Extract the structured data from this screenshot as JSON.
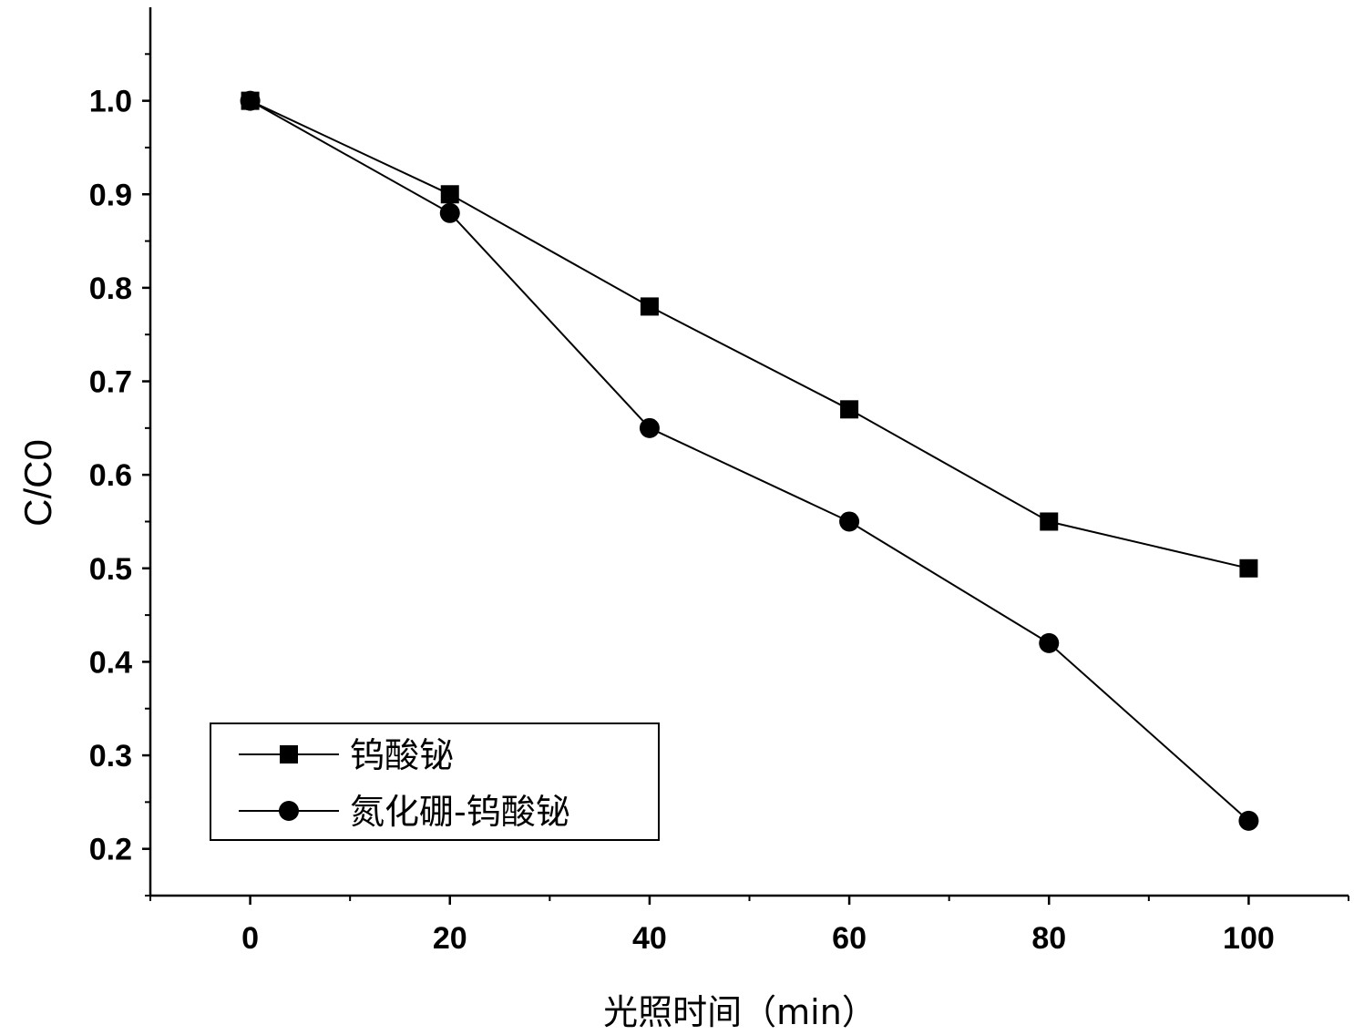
{
  "chart_data": {
    "type": "line",
    "xlabel": "光照时间（min）",
    "ylabel": "C/C0",
    "xlim": [
      -10,
      110
    ],
    "ylim": [
      0.15,
      1.1
    ],
    "xticks": [
      "0",
      "20",
      "40",
      "60",
      "80",
      "100"
    ],
    "yticks": [
      "0.2",
      "0.3",
      "0.4",
      "0.5",
      "0.6",
      "0.7",
      "0.8",
      "0.9",
      "1.0"
    ],
    "x": [
      0,
      20,
      40,
      60,
      80,
      100
    ],
    "series": [
      {
        "name": "钨酸铋",
        "marker": "square",
        "values": [
          1.0,
          0.9,
          0.78,
          0.67,
          0.55,
          0.5
        ]
      },
      {
        "name": "氮化硼-钨酸铋",
        "marker": "circle",
        "values": [
          1.0,
          0.88,
          0.65,
          0.55,
          0.42,
          0.23
        ]
      }
    ],
    "legend_position": "bottom-left",
    "grid": false,
    "colors": {
      "line": "#000000",
      "marker": "#000000"
    }
  }
}
